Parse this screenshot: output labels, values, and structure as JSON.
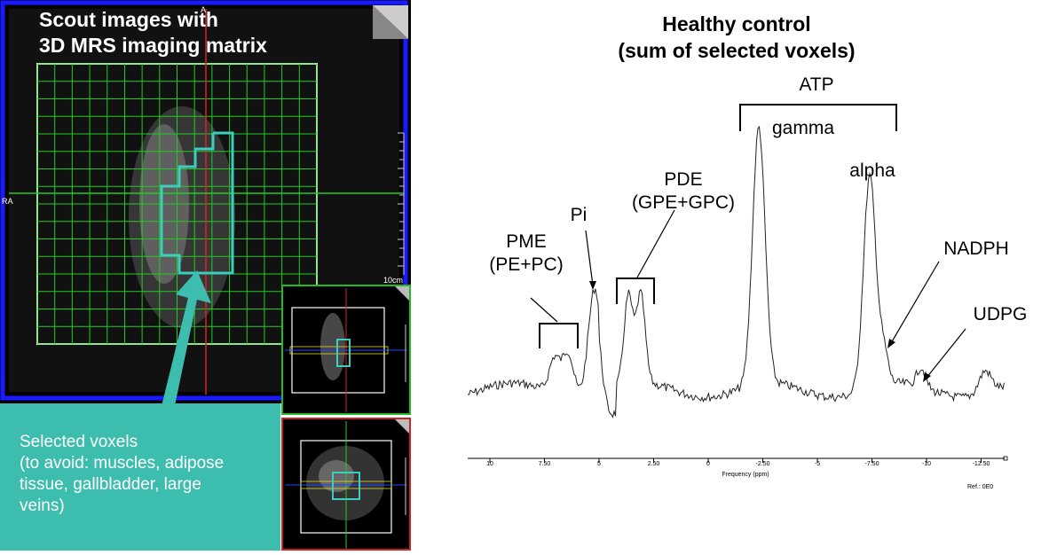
{
  "scout": {
    "title_line1": "Scout images with",
    "title_line2": "3D MRS imaging matrix",
    "marker_top": "A",
    "marker_left": "RA",
    "scale_label": "10cm"
  },
  "selected": {
    "line1": "Selected voxels",
    "line2": "(to avoid: muscles, adipose",
    "line3": "tissue, gallbladder, large",
    "line4": "veins)"
  },
  "spectrum": {
    "title_line1": "Healthy control",
    "title_line2": "(sum of selected voxels)",
    "labels": {
      "pme": "PME",
      "pme_sub": "(PE+PC)",
      "pi": "Pi",
      "pde": "PDE",
      "pde_sub": "(GPE+GPC)",
      "atp": "ATP",
      "gamma": "gamma",
      "alpha": "alpha",
      "nadph": "NADPH",
      "udpg": "UDPG"
    },
    "axis": {
      "ticks": [
        "10",
        "7.50",
        "5",
        "2.50",
        "0",
        "-2.50",
        "-5",
        "-7.50",
        "-10",
        "-12.50"
      ],
      "xlabel": "Frequency (ppm)",
      "ref": "Ref.: 0E0"
    }
  },
  "colors": {
    "teal": "#3dbdad",
    "grid": "#22cc22",
    "frame_blue": "#1a1aff",
    "voxel_outline": "#3ccfc0",
    "crosshair_red": "#dd2222",
    "thumb_top_border": "#22bb22",
    "thumb_bottom_border": "#cc2222"
  }
}
